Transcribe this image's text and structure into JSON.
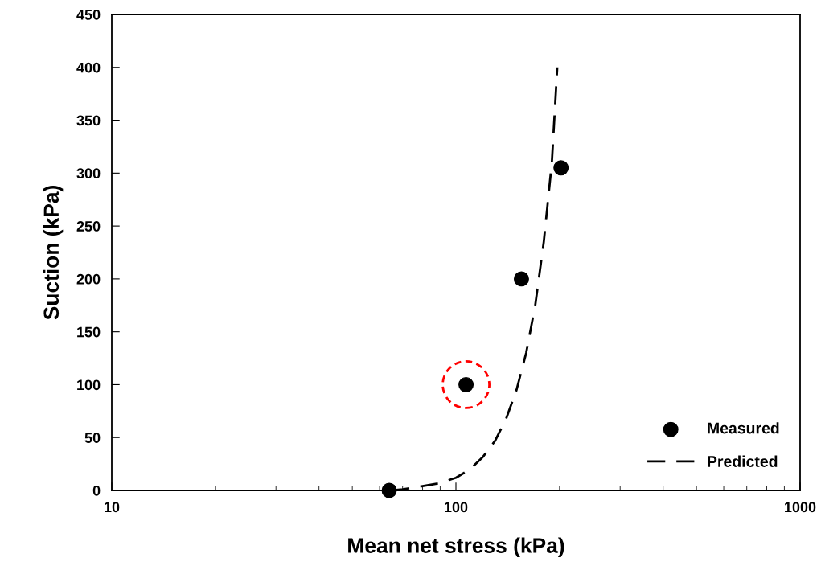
{
  "chart_data": {
    "type": "scatter",
    "xlabel": "Mean net stress (kPa)",
    "ylabel": "Suction (kPa)",
    "log": "x",
    "xlim": [
      10,
      1000
    ],
    "xticks": [
      10,
      100,
      1000
    ],
    "ylim": [
      0,
      450
    ],
    "yticks": [
      0,
      50,
      100,
      150,
      200,
      250,
      300,
      350,
      400,
      450
    ],
    "grid": false,
    "legend": "bottom right",
    "series": [
      {
        "name": "Measured",
        "marker": "circle",
        "color": "#000000",
        "x": [
          64,
          107,
          155,
          202
        ],
        "values": [
          0,
          100,
          200,
          305
        ]
      },
      {
        "name": "Predicted",
        "type": "line",
        "line_style": "dashed",
        "marker": "none",
        "color": "#000000",
        "x": [
          65,
          70,
          80,
          90,
          100,
          110,
          120,
          130,
          140,
          150,
          160,
          170,
          180,
          190,
          197
        ],
        "values": [
          0,
          1,
          4,
          7,
          12,
          20,
          32,
          47,
          68,
          95,
          130,
          175,
          235,
          310,
          400
        ]
      }
    ]
  }
}
